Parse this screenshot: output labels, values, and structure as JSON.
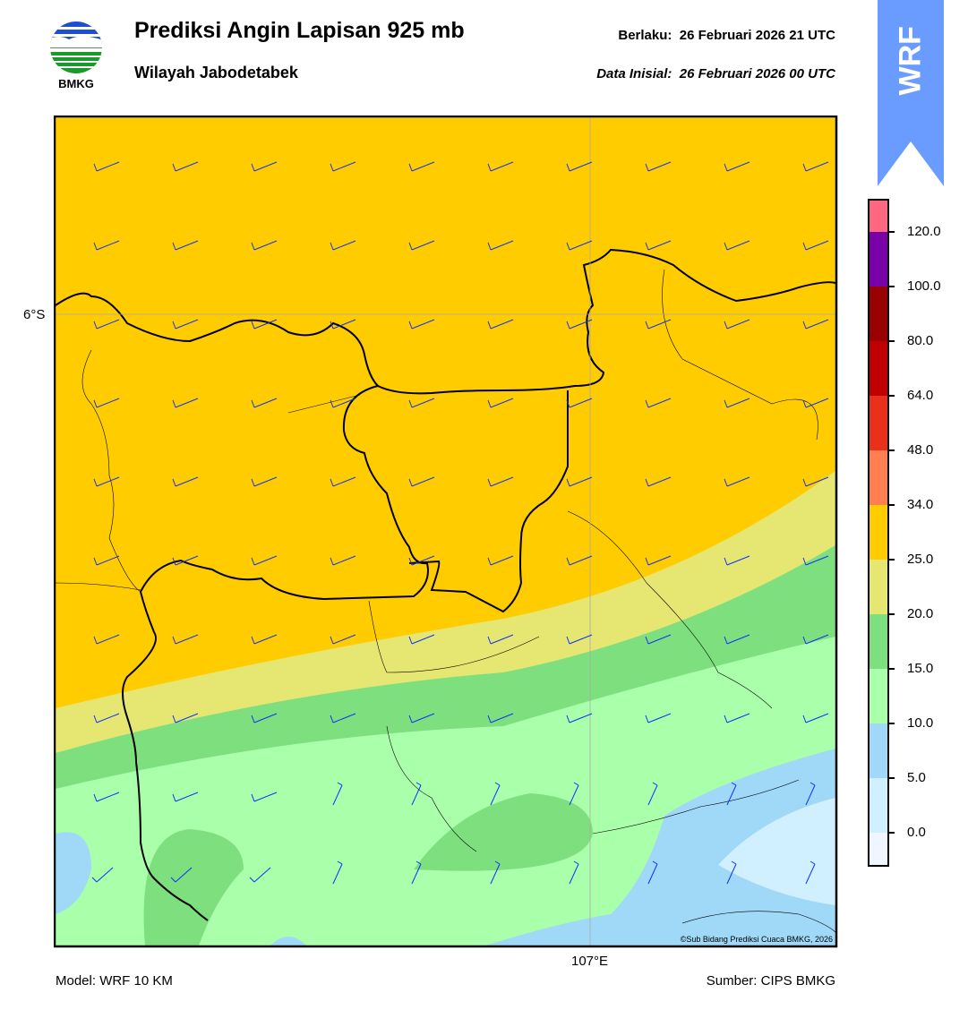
{
  "header": {
    "title": "Prediksi Angin Lapisan 925 mb",
    "region": "Wilayah Jabodetabek",
    "valid_label": "Berlaku:",
    "valid_time": "26 Februari 2026 21 UTC",
    "init_label": "Data Inisial:",
    "init_time": "26 Februari 2026 00 UTC"
  },
  "logo": {
    "text": "BMKG"
  },
  "badge": {
    "text": "WRF",
    "color": "#6a9cff"
  },
  "map": {
    "lat_label": "6°S",
    "lon_label": "107°E",
    "credit": "©Sub Bidang Prediksi Cuaca BMKG, 2026",
    "barb_color": "#1030ff"
  },
  "colorbar": {
    "ticks": [
      "120.0",
      "100.0",
      "80.0",
      "64.0",
      "48.0",
      "34.0",
      "25.0",
      "20.0",
      "15.0",
      "10.0",
      "5.0",
      "0.0"
    ],
    "colors": [
      "#ff6680",
      "#7a00a8",
      "#990000",
      "#c00000",
      "#e8301a",
      "#ff7f50",
      "#ffcc00",
      "#e6e673",
      "#7ddf7d",
      "#aaffaa",
      "#a0d8f8",
      "#d0f0ff",
      "#f0f6ff"
    ]
  },
  "footer": {
    "model": "Model: WRF 10 KM",
    "source": "Sumber: CIPS BMKG"
  }
}
